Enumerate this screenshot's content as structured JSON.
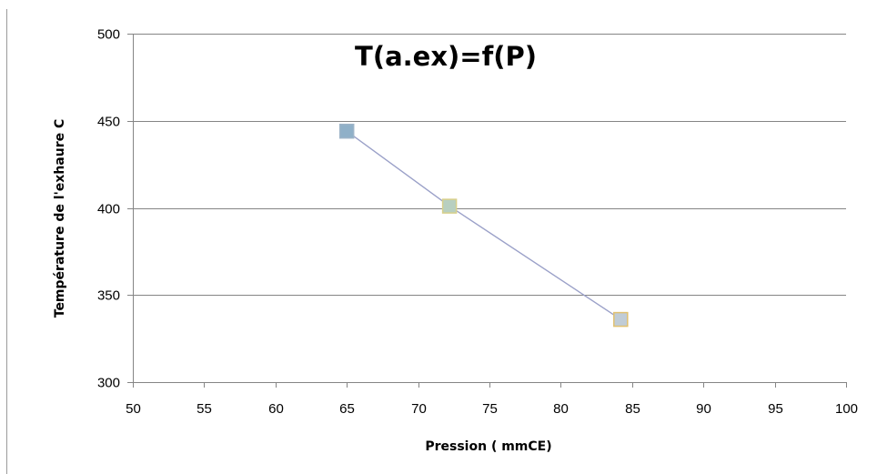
{
  "chart_data": {
    "type": "scatter",
    "title": "T(a.ex)=f(P)",
    "xlabel": "Pression ( mmCE)",
    "ylabel": "Température de l'exhaure C",
    "xlim": [
      50,
      100
    ],
    "ylim": [
      300,
      500
    ],
    "x_ticks": [
      50,
      55,
      60,
      65,
      70,
      75,
      80,
      85,
      90,
      95,
      100
    ],
    "y_ticks": [
      300,
      350,
      400,
      450,
      500
    ],
    "grid": "horizontal",
    "legend": "none",
    "series": [
      {
        "line_color": "#9aa0c8",
        "points": [
          {
            "x": 65,
            "y": 444,
            "fill": "#8fb0c8",
            "stroke": "#9db4c8"
          },
          {
            "x": 72.2,
            "y": 401,
            "fill": "#b8cfc0",
            "stroke": "#d8d08a"
          },
          {
            "x": 84.2,
            "y": 336,
            "fill": "#c0ccd6",
            "stroke": "#e0c070"
          }
        ]
      }
    ]
  }
}
